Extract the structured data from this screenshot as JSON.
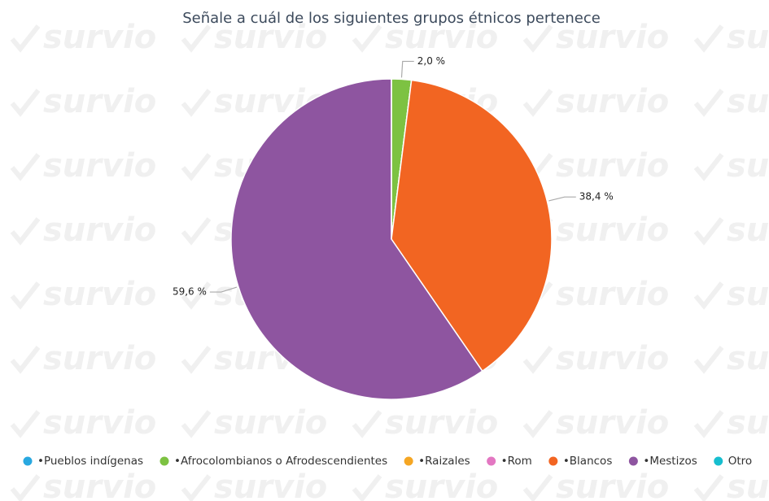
{
  "watermark": "survio",
  "chart_data": {
    "type": "pie",
    "title": "Señale a cuál de los siguientes grupos étnicos pertenece",
    "categories": [
      "•Pueblos indígenas",
      "•Afrocolombianos o Afrodescendientes",
      "•Raizales",
      "•Rom",
      "•Blancos",
      "•Mestizos",
      "Otro"
    ],
    "values": [
      0,
      2.0,
      0,
      0,
      38.4,
      59.6,
      0
    ],
    "value_labels": [
      null,
      "2,0 %",
      null,
      null,
      "38,4 %",
      "59,6 %",
      null
    ],
    "colors": [
      "#29a8e0",
      "#7dc242",
      "#f5a623",
      "#e377c2",
      "#f26522",
      "#8e55a0",
      "#17becf"
    ],
    "legend": "bottom"
  }
}
